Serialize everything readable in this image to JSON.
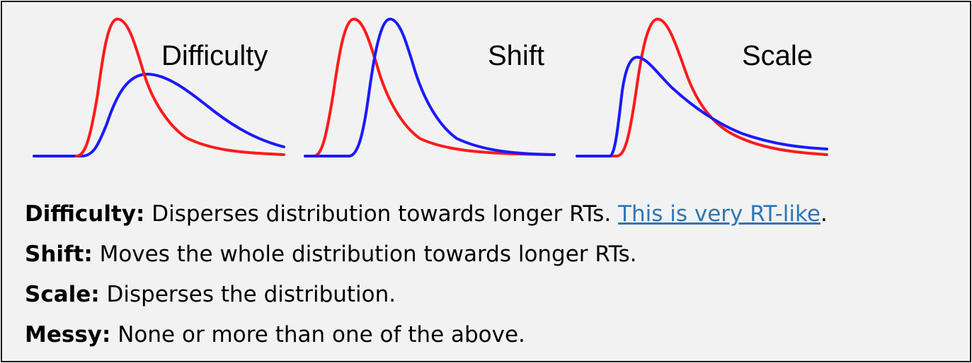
{
  "colors": {
    "red_curve": "#ff1a1a",
    "blue_curve": "#1a1aff",
    "link": "#2e75b6"
  },
  "panels": [
    {
      "id": "difficulty",
      "title": "Difficulty"
    },
    {
      "id": "shift",
      "title": "Shift"
    },
    {
      "id": "scale",
      "title": "Scale"
    }
  ],
  "descriptions": [
    {
      "term": "Difficulty:",
      "text": " Disperses distribution towards longer RTs. ",
      "link": "This is very RT-like",
      "after": "."
    },
    {
      "term": "Shift:",
      "text": " Moves the whole distribution towards longer RTs."
    },
    {
      "term": "Scale:",
      "text": " Disperses the distribution."
    },
    {
      "term": "Messy:",
      "text": " None or more than one of the above."
    }
  ]
}
